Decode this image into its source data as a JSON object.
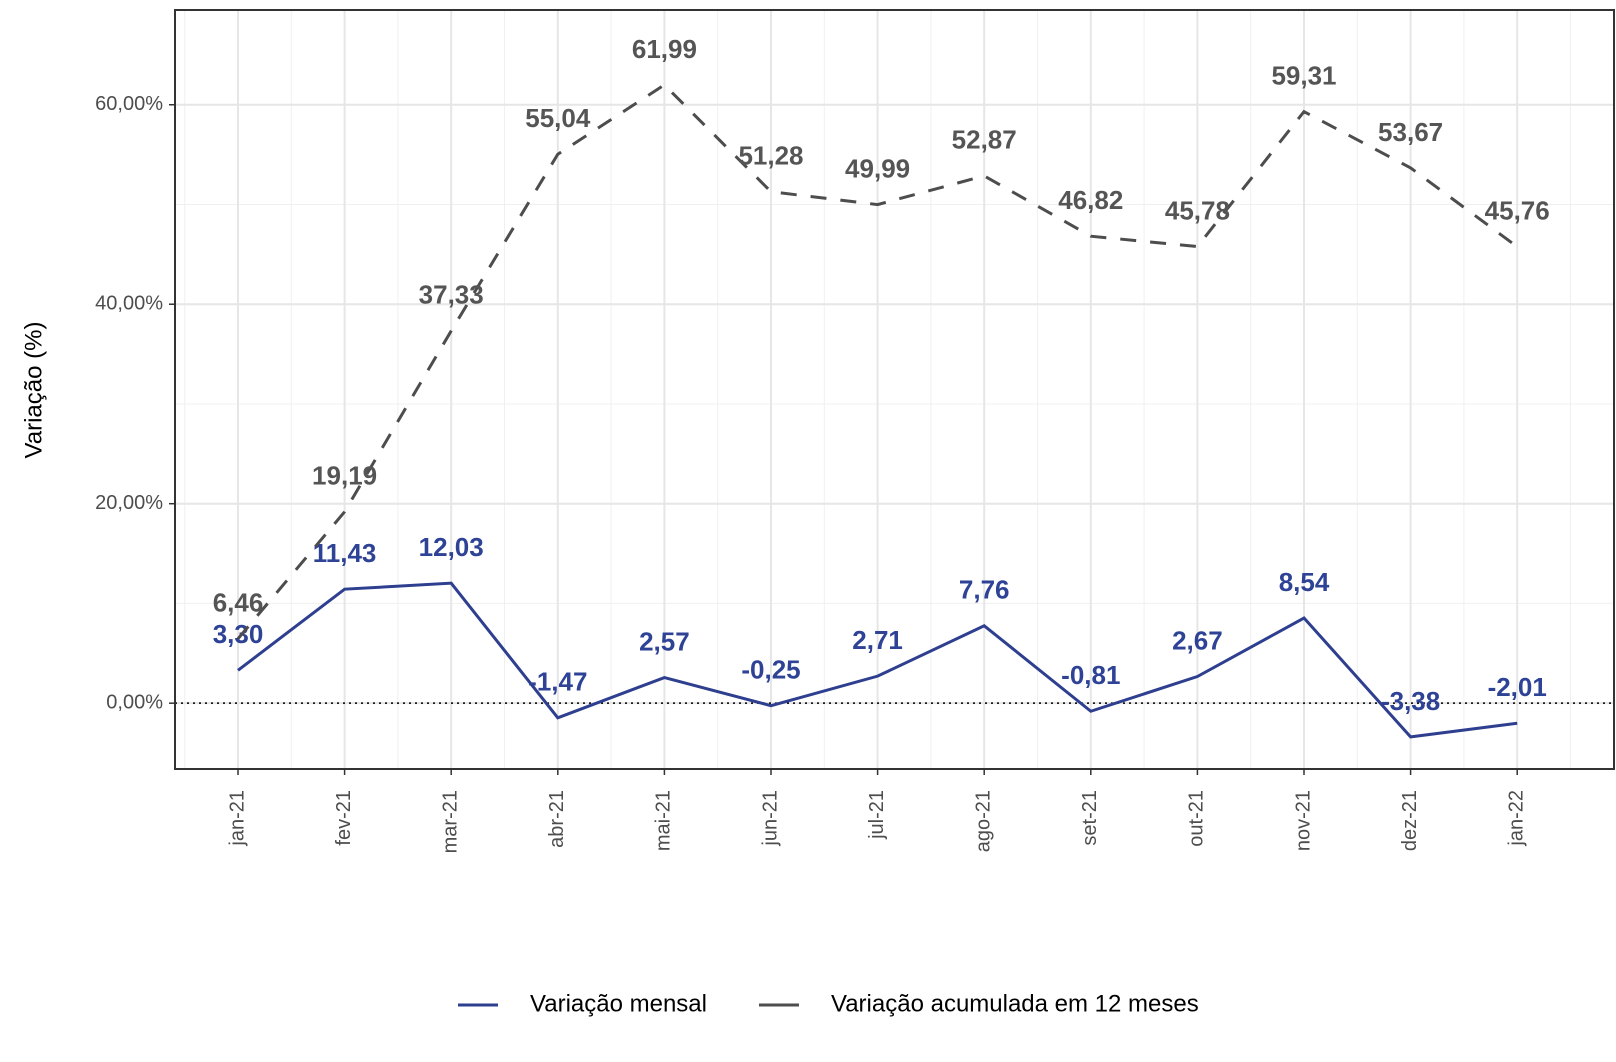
{
  "chart_data": {
    "type": "line",
    "y_label": "Variação (%)",
    "categories": [
      "jan-21",
      "fev-21",
      "mar-21",
      "abr-21",
      "mai-21",
      "jun-21",
      "jul-21",
      "ago-21",
      "set-21",
      "out-21",
      "nov-21",
      "dez-21",
      "jan-22"
    ],
    "series": [
      {
        "name": "Variação mensal",
        "color": "#2e3f8f",
        "dash": "solid",
        "values": [
          3.3,
          11.43,
          12.03,
          -1.47,
          2.57,
          -0.25,
          2.71,
          7.76,
          -0.81,
          2.67,
          8.54,
          -3.38,
          -2.01
        ],
        "value_labels": [
          "3,30",
          "11,43",
          "12,03",
          "-1,47",
          "2,57",
          "-0,25",
          "2,71",
          "7,76",
          "-0,81",
          "2,67",
          "8,54",
          "-3,38",
          "-2,01"
        ]
      },
      {
        "name": "Variação acumulada em 12 meses",
        "color": "#4d4d4d",
        "dash": "dashed",
        "values": [
          6.46,
          19.19,
          37.33,
          55.04,
          61.99,
          51.28,
          49.99,
          52.87,
          46.82,
          45.78,
          59.31,
          53.67,
          45.76
        ],
        "value_labels": [
          "6,46",
          "19,19",
          "37,33",
          "55,04",
          "61,99",
          "51,28",
          "49,99",
          "52,87",
          "46,82",
          "45,78",
          "59,31",
          "53,67",
          "45,76"
        ]
      }
    ],
    "ylim": [
      -6.6,
      69.5
    ],
    "yticks": [
      {
        "value": 0,
        "label": "0,00%"
      },
      {
        "value": 20,
        "label": "20,00%"
      },
      {
        "value": 40,
        "label": "40,00%"
      },
      {
        "value": 60,
        "label": "60,00%"
      }
    ],
    "reference_line": 0,
    "grid": true,
    "legend": "bottom"
  }
}
